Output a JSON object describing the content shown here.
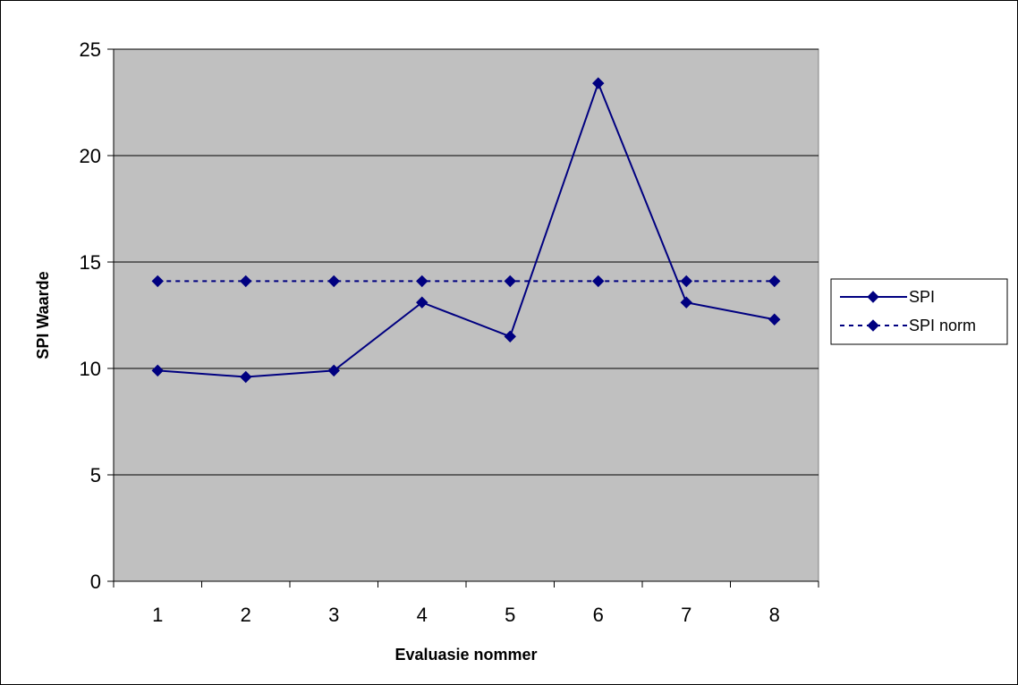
{
  "chart_data": {
    "type": "line",
    "title": "",
    "xlabel": "Evaluasie nommer",
    "ylabel": "SPI Waarde",
    "categories": [
      "1",
      "2",
      "3",
      "4",
      "5",
      "6",
      "7",
      "8"
    ],
    "ylim": [
      0,
      25
    ],
    "yticks": [
      0,
      5,
      10,
      15,
      20,
      25
    ],
    "grid": true,
    "legend_position": "right",
    "plot_background": "#c0c0c0",
    "series": [
      {
        "name": "SPI",
        "values": [
          9.9,
          9.6,
          9.9,
          13.1,
          11.5,
          23.4,
          13.1,
          12.3
        ],
        "color": "#000080",
        "line_style": "solid",
        "marker": "diamond"
      },
      {
        "name": "SPI norm",
        "values": [
          14.1,
          14.1,
          14.1,
          14.1,
          14.1,
          14.1,
          14.1,
          14.1
        ],
        "color": "#000080",
        "line_style": "dashed",
        "marker": "diamond"
      }
    ]
  }
}
